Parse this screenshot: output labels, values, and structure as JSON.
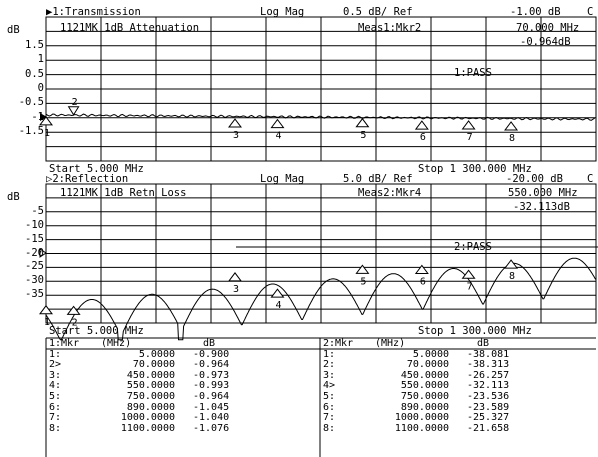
{
  "ch1": {
    "header": "▶1:Transmission",
    "format": "Log Mag",
    "scale": "0.5 dB/ Ref",
    "ref": "-1.00 dB",
    "cflag": "C",
    "title": "1121MK 1dB Attenuation",
    "meas": "Meas1:Mkr2",
    "mkr_freq": "70.000 MHz",
    "mkr_val": "-0.964dB",
    "pass": "1:PASS",
    "yunit": "dB",
    "yticks": [
      "1.5",
      "1",
      "0.5",
      "0",
      "-0.5",
      "-1",
      "-1.5"
    ],
    "start": "Start 5.000 MHz",
    "stop": "Stop 1 300.000 MHz"
  },
  "ch2": {
    "header": "▷2:Reflection",
    "format": "Log Mag",
    "scale": "5.0 dB/ Ref",
    "ref": "-20.00 dB",
    "cflag": "C",
    "title": "1121MK 1dB Retn Loss",
    "meas": "Meas2:Mkr4",
    "mkr_freq": "550.000 MHz",
    "mkr_val": "-32.113dB",
    "pass": "2:PASS",
    "yunit": "dB",
    "yticks": [
      "-5",
      "-10",
      "-15",
      "-20",
      "-25",
      "-30",
      "-35"
    ],
    "start": "Start 5.000 MHz",
    "stop": "Stop 1 300.000 MHz"
  },
  "table1": {
    "header": [
      "1:Mkr",
      "(MHz)",
      "dB"
    ],
    "rows": [
      [
        "1:",
        "5.0000",
        "-0.900"
      ],
      [
        "2>",
        "70.0000",
        "-0.964"
      ],
      [
        "3:",
        "450.0000",
        "-0.973"
      ],
      [
        "4:",
        "550.0000",
        "-0.993"
      ],
      [
        "5:",
        "750.0000",
        "-0.964"
      ],
      [
        "6:",
        "890.0000",
        "-1.045"
      ],
      [
        "7:",
        "1000.0000",
        "-1.040"
      ],
      [
        "8:",
        "1100.0000",
        "-1.076"
      ]
    ]
  },
  "table2": {
    "header": [
      "2:Mkr",
      "(MHz)",
      "dB"
    ],
    "rows": [
      [
        "1:",
        "5.0000",
        "-38.081"
      ],
      [
        "2:",
        "70.0000",
        "-38.313"
      ],
      [
        "3:",
        "450.0000",
        "-26.257"
      ],
      [
        "4>",
        "550.0000",
        "-32.113"
      ],
      [
        "5:",
        "750.0000",
        "-23.536"
      ],
      [
        "6:",
        "890.0000",
        "-23.589"
      ],
      [
        "7:",
        "1000.0000",
        "-25.327"
      ],
      [
        "8:",
        "1100.0000",
        "-21.658"
      ]
    ]
  }
}
